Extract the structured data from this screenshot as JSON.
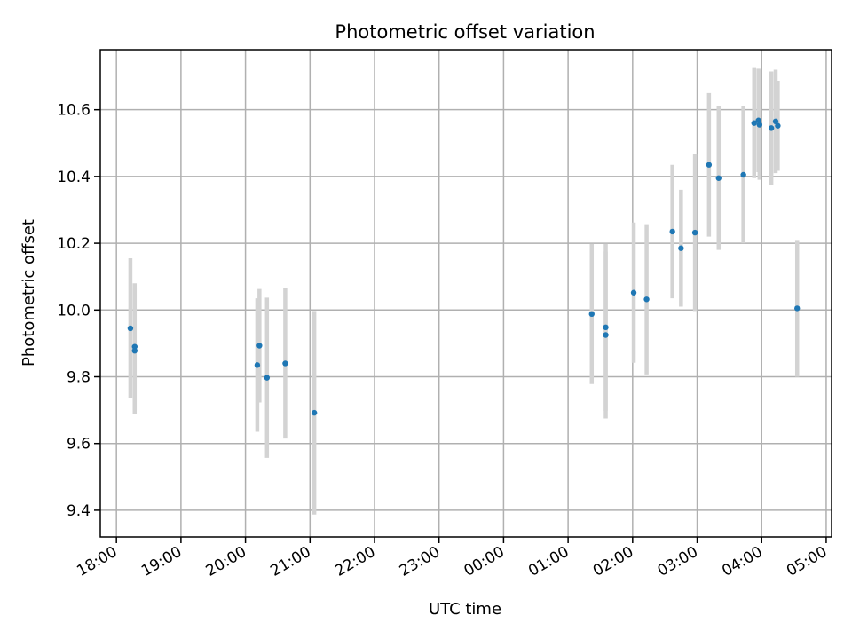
{
  "chart_data": {
    "type": "scatter",
    "title": "Photometric offset variation",
    "xlabel": "UTC time",
    "ylabel": "Photometric offset",
    "grid": true,
    "x_axis": {
      "type": "time",
      "range": [
        "2000-01-01T17:45",
        "2000-01-02T05:05"
      ],
      "ticks": [
        {
          "value": "2000-01-01T18:00",
          "label": "18:00"
        },
        {
          "value": "2000-01-01T19:00",
          "label": "19:00"
        },
        {
          "value": "2000-01-01T20:00",
          "label": "20:00"
        },
        {
          "value": "2000-01-01T21:00",
          "label": "21:00"
        },
        {
          "value": "2000-01-01T22:00",
          "label": "22:00"
        },
        {
          "value": "2000-01-01T23:00",
          "label": "23:00"
        },
        {
          "value": "2000-01-02T00:00",
          "label": "00:00"
        },
        {
          "value": "2000-01-02T01:00",
          "label": "01:00"
        },
        {
          "value": "2000-01-02T02:00",
          "label": "02:00"
        },
        {
          "value": "2000-01-02T03:00",
          "label": "03:00"
        },
        {
          "value": "2000-01-02T04:00",
          "label": "04:00"
        },
        {
          "value": "2000-01-02T05:00",
          "label": "05:00"
        }
      ]
    },
    "y_axis": {
      "range": [
        9.32,
        10.78
      ],
      "ticks": [
        {
          "value": 9.4,
          "label": "9.4"
        },
        {
          "value": 9.6,
          "label": "9.6"
        },
        {
          "value": 9.8,
          "label": "9.8"
        },
        {
          "value": 10.0,
          "label": "10.0"
        },
        {
          "value": 10.2,
          "label": "10.2"
        },
        {
          "value": 10.4,
          "label": "10.4"
        },
        {
          "value": 10.6,
          "label": "10.6"
        }
      ]
    },
    "colors": {
      "point": "#1f77b4",
      "errorbar": "#d3d3d3",
      "grid": "#b0b0b0"
    },
    "points": [
      {
        "x": "2000-01-01T18:13",
        "y": 9.945,
        "yerr": 0.21
      },
      {
        "x": "2000-01-01T18:17",
        "y": 9.89,
        "yerr": 0.19
      },
      {
        "x": "2000-01-01T18:17",
        "y": 9.878,
        "yerr": 0.19
      },
      {
        "x": "2000-01-01T20:11",
        "y": 9.835,
        "yerr": 0.2
      },
      {
        "x": "2000-01-01T20:13",
        "y": 9.893,
        "yerr": 0.17
      },
      {
        "x": "2000-01-01T20:20",
        "y": 9.797,
        "yerr": 0.24
      },
      {
        "x": "2000-01-01T20:37",
        "y": 9.84,
        "yerr": 0.225
      },
      {
        "x": "2000-01-01T21:04",
        "y": 9.692,
        "yerr": 0.305
      },
      {
        "x": "2000-01-02T01:22",
        "y": 9.988,
        "yerr": 0.21
      },
      {
        "x": "2000-01-02T01:35",
        "y": 9.948,
        "yerr": 0.25
      },
      {
        "x": "2000-01-02T01:35",
        "y": 9.925,
        "yerr": 0.25
      },
      {
        "x": "2000-01-02T02:01",
        "y": 10.052,
        "yerr": 0.21
      },
      {
        "x": "2000-01-02T02:13",
        "y": 10.032,
        "yerr": 0.225
      },
      {
        "x": "2000-01-02T02:37",
        "y": 10.235,
        "yerr": 0.2
      },
      {
        "x": "2000-01-02T02:45",
        "y": 10.185,
        "yerr": 0.175
      },
      {
        "x": "2000-01-02T02:58",
        "y": 10.232,
        "yerr": 0.235
      },
      {
        "x": "2000-01-02T03:11",
        "y": 10.435,
        "yerr": 0.215
      },
      {
        "x": "2000-01-02T03:20",
        "y": 10.395,
        "yerr": 0.215
      },
      {
        "x": "2000-01-02T03:43",
        "y": 10.405,
        "yerr": 0.205
      },
      {
        "x": "2000-01-02T03:53",
        "y": 10.56,
        "yerr": 0.165
      },
      {
        "x": "2000-01-02T03:57",
        "y": 10.568,
        "yerr": 0.155
      },
      {
        "x": "2000-01-02T03:58",
        "y": 10.555,
        "yerr": 0.165
      },
      {
        "x": "2000-01-02T04:09",
        "y": 10.545,
        "yerr": 0.17
      },
      {
        "x": "2000-01-02T04:13",
        "y": 10.565,
        "yerr": 0.155
      },
      {
        "x": "2000-01-02T04:15",
        "y": 10.552,
        "yerr": 0.135
      },
      {
        "x": "2000-01-02T04:33",
        "y": 10.005,
        "yerr": 0.205
      }
    ]
  }
}
